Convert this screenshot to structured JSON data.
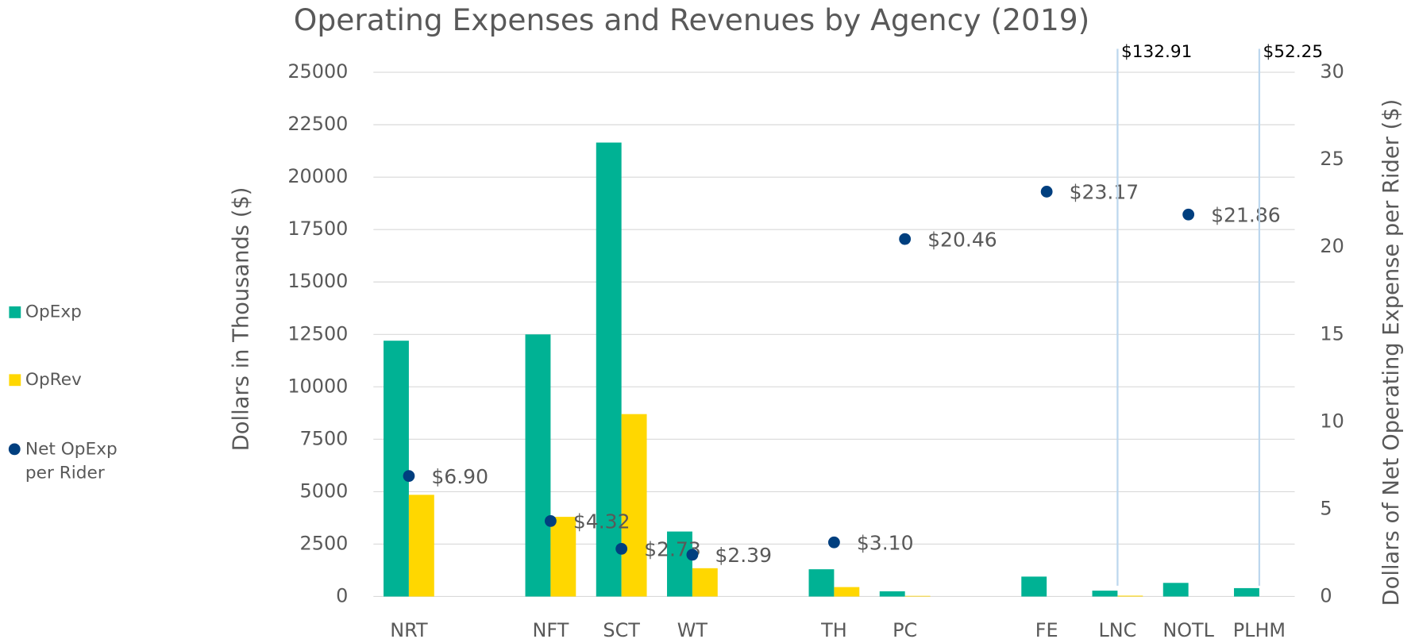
{
  "chart_data": {
    "type": "bar",
    "title": "Operating Expenses and Revenues by Agency (2019)",
    "y_label": "Dollars in Thousands ($)",
    "y2_label": "Dollars of Net Operating Expense per Rider ($)",
    "categories": [
      "NRT",
      null,
      "NFT",
      "SCT",
      "WT",
      null,
      "TH",
      "PC",
      null,
      "FE",
      "LNC",
      "NOTL",
      "PLHM"
    ],
    "series": [
      {
        "name": "OpExp",
        "color": "#00b294",
        "values": [
          12200,
          null,
          12500,
          21650,
          3100,
          null,
          1300,
          250,
          null,
          950,
          280,
          650,
          400
        ]
      },
      {
        "name": "OpRev",
        "color": "#ffd700",
        "values": [
          4850,
          null,
          3800,
          8700,
          1350,
          null,
          450,
          30,
          null,
          0,
          40,
          0,
          0
        ]
      },
      {
        "name": "Net OpExp per Rider",
        "type": "scatter",
        "axis": "y2",
        "color": "#003f7f",
        "values": [
          6.9,
          null,
          4.32,
          2.73,
          2.39,
          null,
          3.1,
          20.46,
          null,
          23.17,
          132.91,
          21.86,
          52.25
        ],
        "value_labels": [
          "$6.90",
          null,
          "$4.32",
          "$2.73",
          "$2.39",
          null,
          "$3.10",
          "$20.46",
          null,
          "$23.17",
          "$132.91",
          "$21.86",
          "$52.25"
        ]
      }
    ],
    "ylim": [
      0,
      25000
    ],
    "yticks": [
      0,
      2500,
      5000,
      7500,
      10000,
      12500,
      15000,
      17500,
      20000,
      22500,
      25000
    ],
    "y2lim": [
      0,
      30
    ],
    "y2ticks": [
      0,
      5,
      10,
      15,
      20,
      25,
      30
    ],
    "grid": true,
    "legend": "left"
  }
}
